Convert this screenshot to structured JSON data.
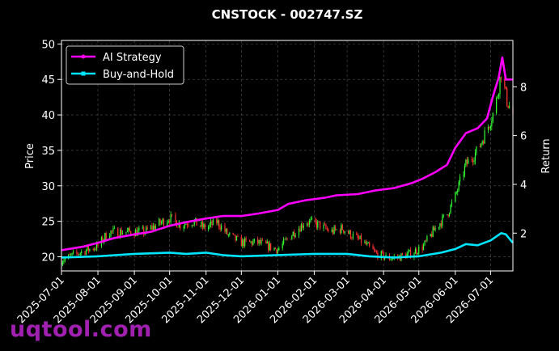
{
  "watermark": "uqtool.com",
  "colors": {
    "background": "#000000",
    "grid": "#555555",
    "up_candle": "#33ff33",
    "down_candle": "#ff3333",
    "ai_strategy": "#ff00ff",
    "buy_and_hold": "#00e5ff",
    "text": "#ffffff"
  },
  "chart_data": {
    "type": "line",
    "title": "CNSTOCK - 002747.SZ",
    "ylabel_left": "Price",
    "ylabel_right": "Return",
    "xlim": [
      "2025-07-01",
      "2026-07-20"
    ],
    "ylim_left": [
      18,
      50.5
    ],
    "ylim_right": [
      0.45,
      9.9
    ],
    "x_ticks": [
      "2025-07-01",
      "2025-08-01",
      "2025-09-01",
      "2025-10-01",
      "2025-11-01",
      "2025-12-01",
      "2026-01-01",
      "2026-02-01",
      "2026-03-01",
      "2026-04-01",
      "2026-05-01",
      "2026-06-01",
      "2026-07-01"
    ],
    "y_ticks_left": [
      20,
      25,
      30,
      35,
      40,
      45,
      50
    ],
    "y_ticks_right": [
      2,
      4,
      6,
      8
    ],
    "grid": true,
    "legend_position": "top-left",
    "price_path": [
      [
        "2025-07-01",
        19.5
      ],
      [
        "2025-07-15",
        20.5
      ],
      [
        "2025-08-01",
        21.5
      ],
      [
        "2025-08-10",
        23.5
      ],
      [
        "2025-08-25",
        23.5
      ],
      [
        "2025-09-10",
        23.5
      ],
      [
        "2025-09-20",
        24.5
      ],
      [
        "2025-10-01",
        25.5
      ],
      [
        "2025-10-10",
        24.5
      ],
      [
        "2025-10-20",
        25.0
      ],
      [
        "2025-11-01",
        24.0
      ],
      [
        "2025-11-10",
        25.0
      ],
      [
        "2025-11-20",
        23.0
      ],
      [
        "2025-12-01",
        22.0
      ],
      [
        "2025-12-15",
        22.0
      ],
      [
        "2026-01-01",
        21.0
      ],
      [
        "2026-01-15",
        23.5
      ],
      [
        "2026-01-25",
        25.0
      ],
      [
        "2026-02-05",
        24.5
      ],
      [
        "2026-02-15",
        23.5
      ],
      [
        "2026-02-25",
        24.0
      ],
      [
        "2026-03-05",
        23.0
      ],
      [
        "2026-03-15",
        22.0
      ],
      [
        "2026-03-25",
        20.5
      ],
      [
        "2026-04-05",
        19.8
      ],
      [
        "2026-04-15",
        20.0
      ],
      [
        "2026-04-25",
        20.5
      ],
      [
        "2026-05-05",
        21.5
      ],
      [
        "2026-05-15",
        24.0
      ],
      [
        "2026-05-25",
        26.0
      ],
      [
        "2026-06-01",
        28.5
      ],
      [
        "2026-06-10",
        33.0
      ],
      [
        "2026-06-20",
        35.0
      ],
      [
        "2026-06-28",
        38.0
      ],
      [
        "2026-07-05",
        41.0
      ],
      [
        "2026-07-10",
        46.0
      ],
      [
        "2026-07-15",
        42.0
      ],
      [
        "2026-07-20",
        40.0
      ]
    ],
    "series": [
      {
        "name": "AI Strategy",
        "values": [
          [
            "2025-07-01",
            1.3
          ],
          [
            "2025-07-20",
            1.45
          ],
          [
            "2025-08-01",
            1.6
          ],
          [
            "2025-08-15",
            1.8
          ],
          [
            "2025-09-01",
            1.95
          ],
          [
            "2025-09-15",
            2.05
          ],
          [
            "2025-10-01",
            2.3
          ],
          [
            "2025-10-15",
            2.45
          ],
          [
            "2025-11-01",
            2.6
          ],
          [
            "2025-11-15",
            2.7
          ],
          [
            "2025-12-01",
            2.7
          ],
          [
            "2025-12-15",
            2.8
          ],
          [
            "2026-01-01",
            2.95
          ],
          [
            "2026-01-10",
            3.2
          ],
          [
            "2026-01-25",
            3.35
          ],
          [
            "2026-02-10",
            3.45
          ],
          [
            "2026-02-20",
            3.55
          ],
          [
            "2026-03-10",
            3.6
          ],
          [
            "2026-03-25",
            3.75
          ],
          [
            "2026-04-10",
            3.85
          ],
          [
            "2026-04-25",
            4.05
          ],
          [
            "2026-05-05",
            4.25
          ],
          [
            "2026-05-15",
            4.5
          ],
          [
            "2026-05-25",
            4.8
          ],
          [
            "2026-06-01",
            5.5
          ],
          [
            "2026-06-10",
            6.1
          ],
          [
            "2026-06-20",
            6.3
          ],
          [
            "2026-06-28",
            6.7
          ],
          [
            "2026-07-03",
            7.6
          ],
          [
            "2026-07-08",
            8.4
          ],
          [
            "2026-07-11",
            9.2
          ],
          [
            "2026-07-14",
            8.3
          ],
          [
            "2026-07-20",
            8.3
          ]
        ]
      },
      {
        "name": "Buy-and-Hold",
        "values": [
          [
            "2025-07-01",
            1.0
          ],
          [
            "2025-08-01",
            1.05
          ],
          [
            "2025-09-01",
            1.15
          ],
          [
            "2025-10-01",
            1.2
          ],
          [
            "2025-10-15",
            1.15
          ],
          [
            "2025-11-01",
            1.2
          ],
          [
            "2025-11-15",
            1.1
          ],
          [
            "2025-12-01",
            1.05
          ],
          [
            "2026-01-01",
            1.1
          ],
          [
            "2026-02-01",
            1.15
          ],
          [
            "2026-03-01",
            1.15
          ],
          [
            "2026-03-20",
            1.05
          ],
          [
            "2026-04-10",
            1.0
          ],
          [
            "2026-05-01",
            1.05
          ],
          [
            "2026-05-20",
            1.2
          ],
          [
            "2026-06-01",
            1.35
          ],
          [
            "2026-06-10",
            1.55
          ],
          [
            "2026-06-20",
            1.5
          ],
          [
            "2026-07-01",
            1.7
          ],
          [
            "2026-07-10",
            2.0
          ],
          [
            "2026-07-14",
            1.95
          ],
          [
            "2026-07-20",
            1.6
          ]
        ]
      }
    ]
  }
}
